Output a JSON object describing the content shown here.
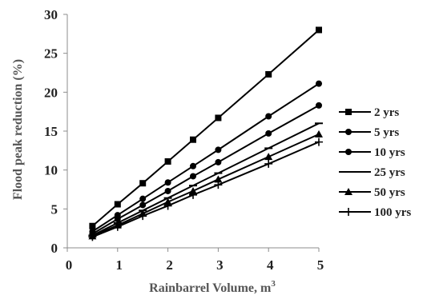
{
  "chart_data": {
    "type": "line",
    "xlabel": "Rainbarrel Volume, m",
    "xlabel_superscript": "3",
    "ylabel": "Flood peak reduction (%)",
    "xlim": [
      0,
      5
    ],
    "ylim": [
      0,
      30
    ],
    "xticks": [
      "0",
      "1",
      "2",
      "3",
      "4",
      "5"
    ],
    "yticks": [
      "0",
      "5",
      "10",
      "15",
      "20",
      "25",
      "30"
    ],
    "grid": false,
    "legend_position": "right",
    "x": [
      0.5,
      1,
      1.5,
      2,
      2.5,
      3,
      4,
      5
    ],
    "series": [
      {
        "name": "2 yrs",
        "marker": "square",
        "values": [
          2.8,
          5.6,
          8.3,
          11.1,
          13.9,
          16.7,
          22.3,
          28.0
        ]
      },
      {
        "name": "5 yrs",
        "marker": "circle",
        "values": [
          2.1,
          4.2,
          6.3,
          8.4,
          10.5,
          12.6,
          16.9,
          21.1
        ]
      },
      {
        "name": "10 yrs",
        "marker": "circle",
        "values": [
          1.8,
          3.7,
          5.5,
          7.3,
          9.2,
          11.0,
          14.7,
          18.3
        ]
      },
      {
        "name": "25 yrs",
        "marker": "dash",
        "values": [
          1.6,
          3.2,
          4.8,
          6.4,
          8.0,
          9.6,
          12.8,
          16.0
        ]
      },
      {
        "name": "50 yrs",
        "marker": "triangle",
        "values": [
          1.5,
          2.9,
          4.4,
          5.9,
          7.3,
          8.8,
          11.7,
          14.6
        ]
      },
      {
        "name": "100 yrs",
        "marker": "plus",
        "values": [
          1.4,
          2.7,
          4.1,
          5.4,
          6.8,
          8.1,
          10.8,
          13.6
        ]
      }
    ],
    "colors": {
      "line": "#000000",
      "axis": "#8c8c8c"
    }
  }
}
